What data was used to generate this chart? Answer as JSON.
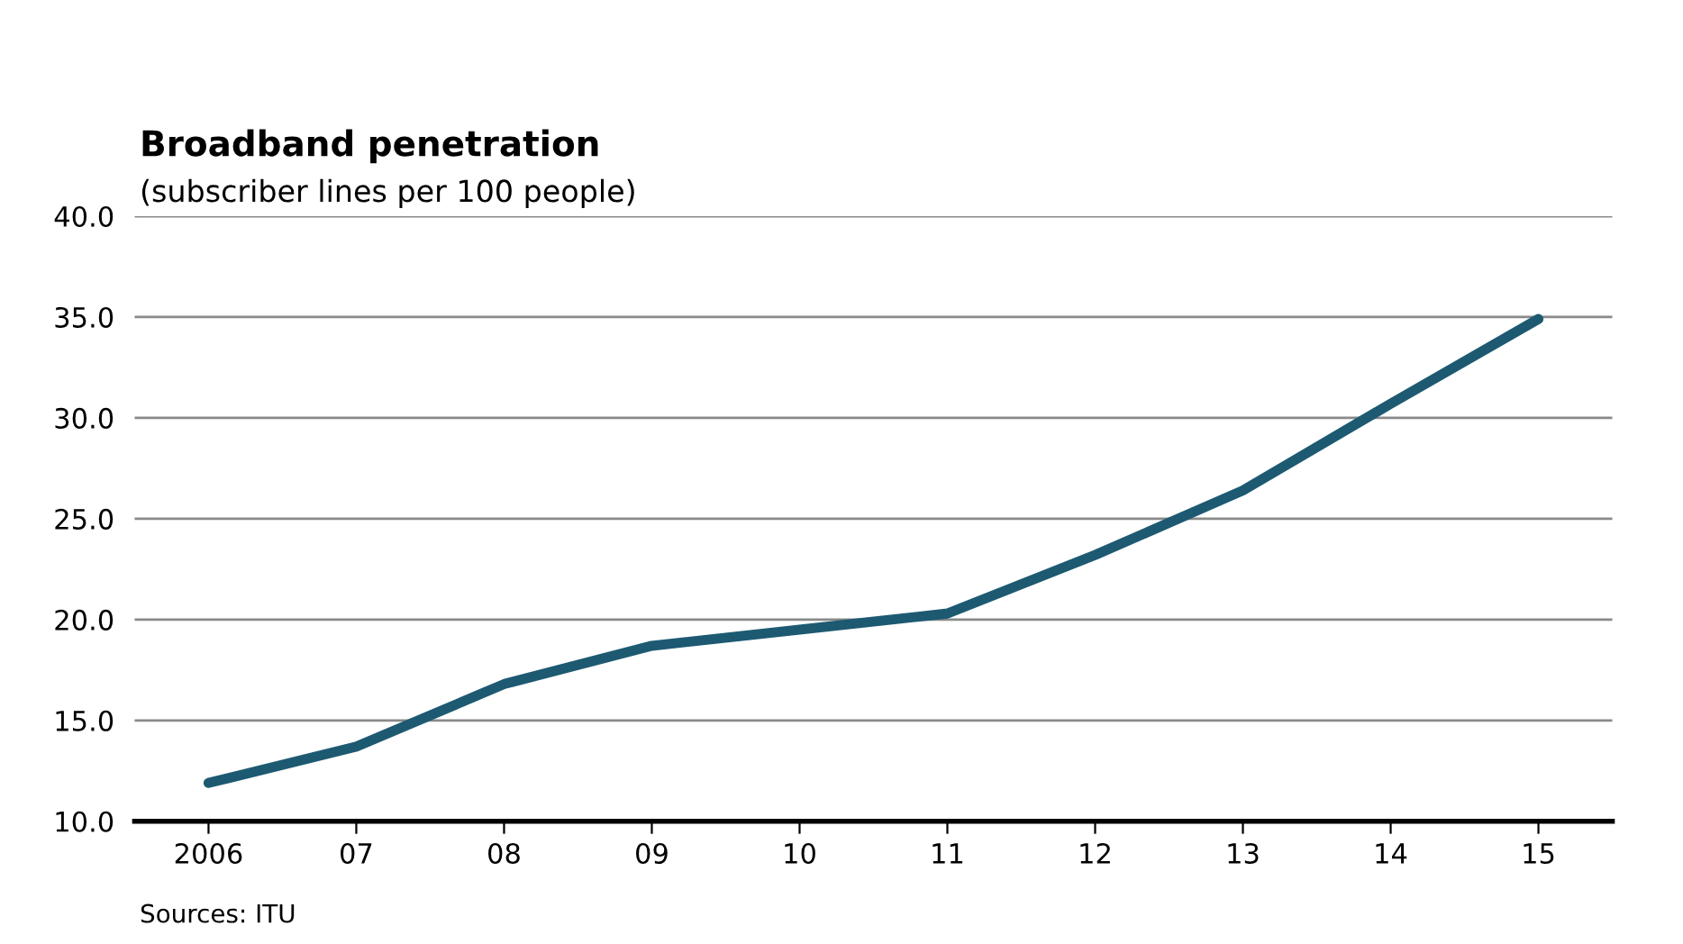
{
  "chart_data": {
    "type": "line",
    "title": "Broadband penetration",
    "subtitle": "(subscriber lines per 100 people)",
    "categories": [
      "2006",
      "07",
      "08",
      "09",
      "10",
      "11",
      "12",
      "13",
      "14",
      "15"
    ],
    "series": [
      {
        "color": "#1d5a72",
        "values": [
          11.9,
          13.7,
          16.8,
          18.7,
          19.5,
          20.3,
          23.2,
          26.4,
          30.7,
          34.9
        ]
      }
    ],
    "ylim": [
      10,
      40
    ],
    "yticks": [
      {
        "value": 10,
        "label": "10.0"
      },
      {
        "value": 15,
        "label": "15.0"
      },
      {
        "value": 20,
        "label": "20.0"
      },
      {
        "value": 25,
        "label": "25.0"
      },
      {
        "value": 30,
        "label": "30.0"
      },
      {
        "value": 35,
        "label": "35.0"
      },
      {
        "value": 40,
        "label": "40.0"
      }
    ],
    "grid": "y",
    "marker": "none",
    "line_style": "solid",
    "annotations": [
      "Sources: ITU"
    ]
  }
}
